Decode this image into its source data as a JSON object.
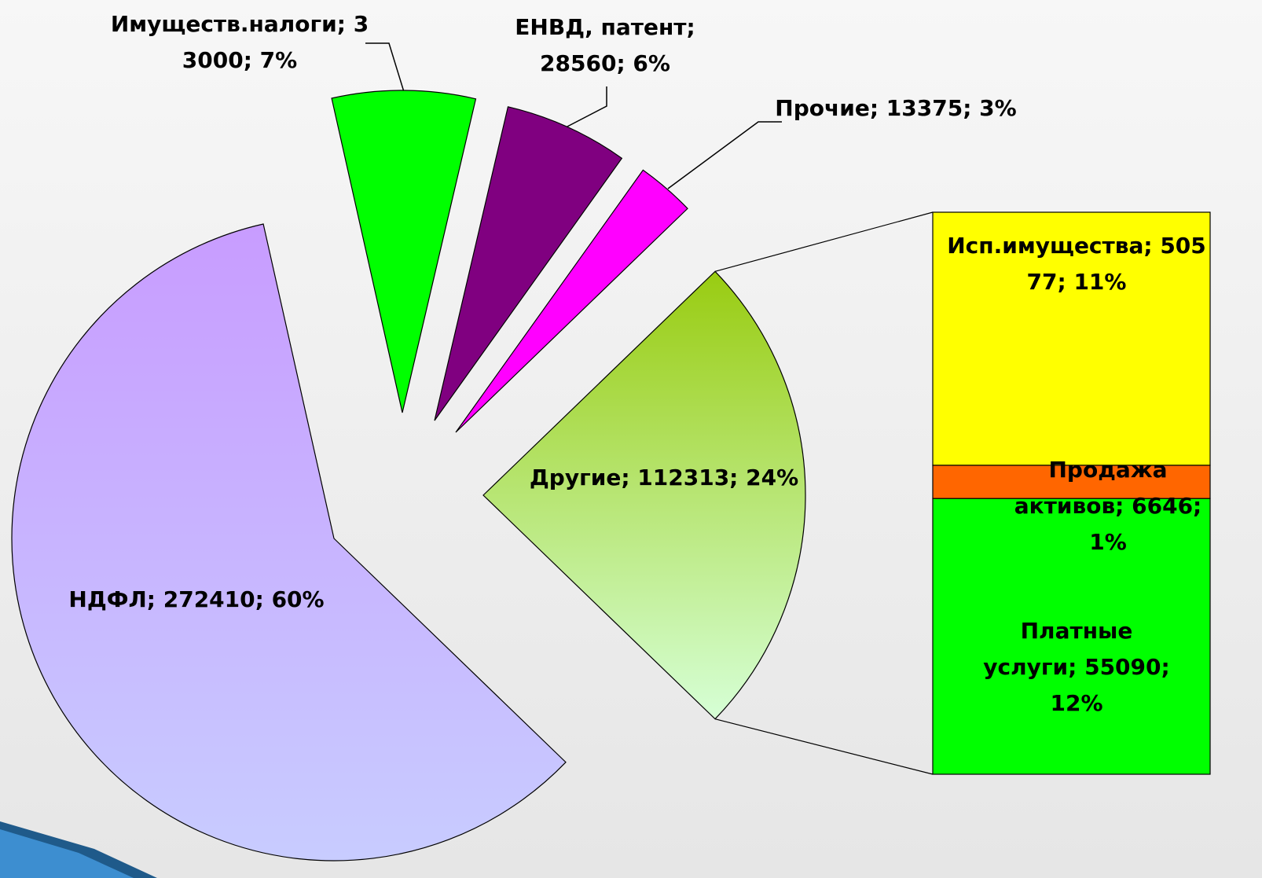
{
  "chart_data": {
    "type": "pie",
    "values": [
      272410,
      33000,
      28560,
      13375,
      112313
    ],
    "value_labels": [
      "НДФЛ; 272410; 60%",
      "Имуществ.налоги; 33000; 7%",
      "ЕНВД, патент; 28560; 6%",
      "Прочие; 13375; 3%",
      "Другие; 112313; 24%"
    ],
    "colors": [
      "#c8b4ff",
      "#00ff00",
      "#800080",
      "#ff00ff",
      "#b5e08a"
    ],
    "bar_of_pie": {
      "values": [
        50577,
        6646,
        55090
      ],
      "value_labels": [
        "Исп.имущества; 50577; 11%",
        "Продажа активов; 6646; 1%",
        "Платные услуги; 55090; 12%"
      ],
      "colors": [
        "#ffff00",
        "#ff6600",
        "#00ff00"
      ]
    }
  }
}
